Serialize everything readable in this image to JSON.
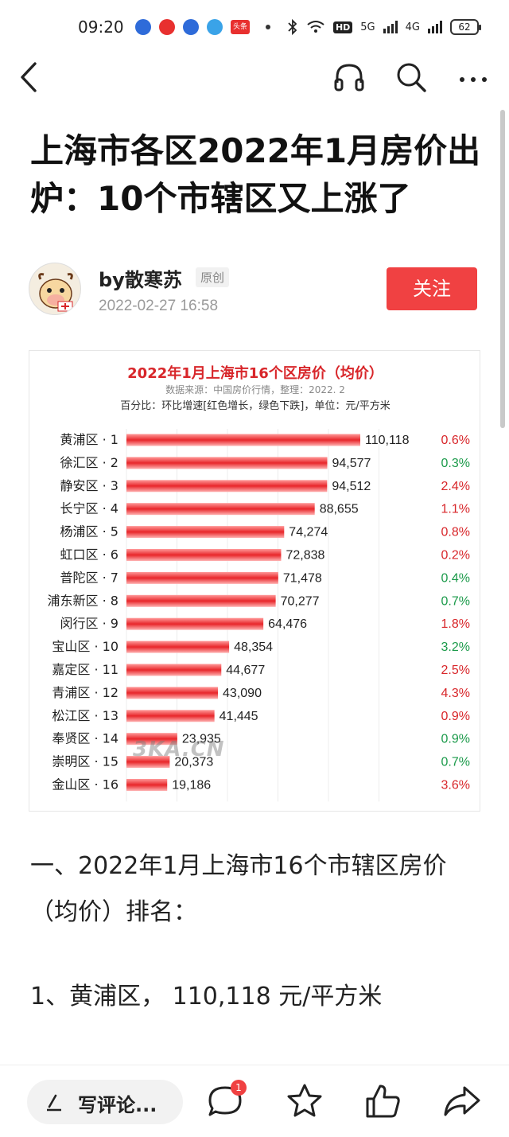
{
  "status_bar": {
    "time": "09:20",
    "toutiao_label": "头条",
    "hd_label": "HD",
    "net1": "5G",
    "net2": "4G",
    "battery": "62"
  },
  "article": {
    "title": "上海市各区2022年1月房价出炉：10个市辖区又上涨了",
    "author": "by散寒苏",
    "original_badge": "原创",
    "time": "2022-02-27 16:58",
    "follow_label": "关注",
    "paragraph1": "一、2022年1月上海市16个市辖区房价（均价）排名：",
    "paragraph2": "1、黄浦区， 110,118 元/平方米"
  },
  "chart_data": {
    "type": "bar",
    "orientation": "horizontal",
    "title": "2022年1月上海市16个区房价（均价）",
    "source": "数据来源：中国房价行情，整理：2022. 2",
    "note": "百分比：环比增速[红色增长，绿色下跌]，单位：元/平方米",
    "watermark": "3KA.CN",
    "categories": [
      "黄浦区 · 1",
      "徐汇区 · 2",
      "静安区 · 3",
      "长宁区 · 4",
      "杨浦区 · 5",
      "虹口区 · 6",
      "普陀区 · 7",
      "浦东新区 · 8",
      "闵行区 · 9",
      "宝山区 · 10",
      "嘉定区 · 11",
      "青浦区 · 12",
      "松江区 · 13",
      "奉贤区 · 14",
      "崇明区 · 15",
      "金山区 · 16"
    ],
    "values": [
      110118,
      94577,
      94512,
      88655,
      74274,
      72838,
      71478,
      70277,
      64476,
      48354,
      44677,
      43090,
      41445,
      23935,
      20373,
      19186
    ],
    "value_labels": [
      "110,118",
      "94,577",
      "94,512",
      "88,655",
      "74,274",
      "72,838",
      "71,478",
      "70,277",
      "64,476",
      "48,354",
      "44,677",
      "43,090",
      "41,445",
      "23,935",
      "20,373",
      "19,186"
    ],
    "change_labels": [
      "0.6%",
      "0.3%",
      "2.4%",
      "1.1%",
      "0.8%",
      "0.2%",
      "0.4%",
      "0.7%",
      "1.8%",
      "3.2%",
      "2.5%",
      "4.3%",
      "0.9%",
      "0.9%",
      "0.7%",
      "3.6%"
    ],
    "change_direction": [
      "up",
      "down",
      "up",
      "up",
      "up",
      "up",
      "down",
      "down",
      "up",
      "down",
      "up",
      "up",
      "up",
      "down",
      "down",
      "up"
    ],
    "xlim": [
      0,
      110118
    ],
    "colors": {
      "bar": "#e8262a",
      "up": "#d8262a",
      "down": "#1b9a4a"
    }
  },
  "bottom_bar": {
    "comment_placeholder": "写评论...",
    "comment_count": "1"
  },
  "icons": {
    "back": "back-arrow-icon",
    "headphone": "headphone-icon",
    "search": "search-icon",
    "more": "more-icon",
    "comment": "comment-bubble-icon",
    "favorite": "star-icon",
    "like": "thumbs-up-icon",
    "share": "share-arrow-icon"
  }
}
